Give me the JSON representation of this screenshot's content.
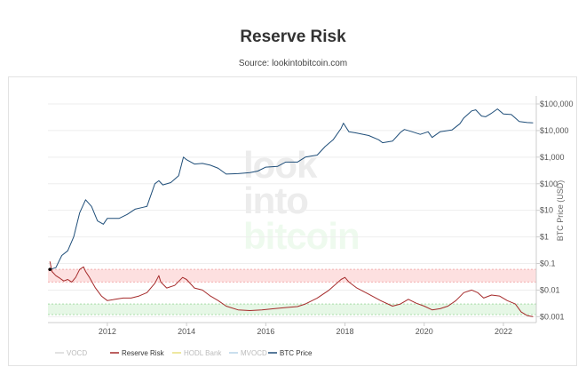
{
  "chart_data": {
    "type": "line",
    "title": "Reserve Risk",
    "subtitle": "Source: lookintobitcoin.com",
    "watermark": [
      "look",
      "into",
      "bitcoin"
    ],
    "y_right_label": "BTC Price (USD)",
    "y_right_scale": "log",
    "y_right_range": [
      0.0006,
      200000
    ],
    "y_right_ticks": [
      "$0.001",
      "$0.01",
      "$0.1",
      "$1",
      "$10",
      "$100",
      "$1,000",
      "$10,000",
      "$100,000"
    ],
    "x_range": [
      2010.5,
      2022.83
    ],
    "x_ticks": [
      "2012",
      "2014",
      "2016",
      "2018",
      "2020",
      "2022"
    ],
    "bands": [
      {
        "from": 0.02,
        "to": 0.06,
        "color": "#fde0e0"
      },
      {
        "from": 0.0012,
        "to": 0.003,
        "color": "#e6f7e6"
      }
    ],
    "series": [
      {
        "name": "VOCD",
        "color": "#d8d8d8",
        "values": []
      },
      {
        "name": "Reserve Risk",
        "color": "#a52a2a",
        "values": [
          [
            2010.55,
            0.12
          ],
          [
            2010.6,
            0.05
          ],
          [
            2010.7,
            0.035
          ],
          [
            2010.8,
            0.028
          ],
          [
            2010.9,
            0.022
          ],
          [
            2011.0,
            0.025
          ],
          [
            2011.1,
            0.02
          ],
          [
            2011.2,
            0.03
          ],
          [
            2011.3,
            0.06
          ],
          [
            2011.4,
            0.075
          ],
          [
            2011.45,
            0.05
          ],
          [
            2011.55,
            0.03
          ],
          [
            2011.7,
            0.012
          ],
          [
            2011.85,
            0.006
          ],
          [
            2012.0,
            0.004
          ],
          [
            2012.2,
            0.0045
          ],
          [
            2012.4,
            0.005
          ],
          [
            2012.6,
            0.005
          ],
          [
            2012.8,
            0.006
          ],
          [
            2013.0,
            0.008
          ],
          [
            2013.2,
            0.018
          ],
          [
            2013.3,
            0.035
          ],
          [
            2013.35,
            0.02
          ],
          [
            2013.5,
            0.012
          ],
          [
            2013.7,
            0.015
          ],
          [
            2013.9,
            0.03
          ],
          [
            2014.0,
            0.025
          ],
          [
            2014.2,
            0.012
          ],
          [
            2014.4,
            0.01
          ],
          [
            2014.6,
            0.006
          ],
          [
            2014.8,
            0.004
          ],
          [
            2015.0,
            0.0025
          ],
          [
            2015.3,
            0.0018
          ],
          [
            2015.6,
            0.0017
          ],
          [
            2015.9,
            0.0018
          ],
          [
            2016.2,
            0.002
          ],
          [
            2016.5,
            0.0022
          ],
          [
            2016.8,
            0.0024
          ],
          [
            2017.0,
            0.003
          ],
          [
            2017.3,
            0.005
          ],
          [
            2017.6,
            0.01
          ],
          [
            2017.9,
            0.025
          ],
          [
            2018.0,
            0.03
          ],
          [
            2018.1,
            0.02
          ],
          [
            2018.3,
            0.012
          ],
          [
            2018.6,
            0.007
          ],
          [
            2018.9,
            0.004
          ],
          [
            2019.2,
            0.0025
          ],
          [
            2019.4,
            0.003
          ],
          [
            2019.6,
            0.0045
          ],
          [
            2019.8,
            0.0032
          ],
          [
            2020.0,
            0.0025
          ],
          [
            2020.2,
            0.0018
          ],
          [
            2020.4,
            0.002
          ],
          [
            2020.6,
            0.0025
          ],
          [
            2020.8,
            0.004
          ],
          [
            2021.0,
            0.008
          ],
          [
            2021.2,
            0.01
          ],
          [
            2021.35,
            0.008
          ],
          [
            2021.5,
            0.005
          ],
          [
            2021.7,
            0.0065
          ],
          [
            2021.9,
            0.006
          ],
          [
            2022.1,
            0.004
          ],
          [
            2022.3,
            0.003
          ],
          [
            2022.45,
            0.0015
          ],
          [
            2022.6,
            0.0011
          ],
          [
            2022.75,
            0.001
          ]
        ]
      },
      {
        "name": "HODL Bank",
        "color": "#e8e080",
        "values": []
      },
      {
        "name": "MVOCD",
        "color": "#b8d4e8",
        "values": []
      },
      {
        "name": "BTC Price",
        "color": "#1f4e79",
        "values": [
          [
            2010.55,
            0.06
          ],
          [
            2010.7,
            0.07
          ],
          [
            2010.85,
            0.2
          ],
          [
            2011.0,
            0.3
          ],
          [
            2011.15,
            1.0
          ],
          [
            2011.3,
            8
          ],
          [
            2011.45,
            25
          ],
          [
            2011.6,
            14
          ],
          [
            2011.75,
            4
          ],
          [
            2011.9,
            3
          ],
          [
            2012.0,
            5
          ],
          [
            2012.3,
            5
          ],
          [
            2012.5,
            7
          ],
          [
            2012.7,
            11
          ],
          [
            2012.9,
            13
          ],
          [
            2013.0,
            14
          ],
          [
            2013.2,
            100
          ],
          [
            2013.3,
            130
          ],
          [
            2013.4,
            90
          ],
          [
            2013.6,
            110
          ],
          [
            2013.8,
            200
          ],
          [
            2013.92,
            1000
          ],
          [
            2014.0,
            800
          ],
          [
            2014.2,
            550
          ],
          [
            2014.4,
            580
          ],
          [
            2014.6,
            500
          ],
          [
            2014.8,
            380
          ],
          [
            2015.0,
            230
          ],
          [
            2015.3,
            240
          ],
          [
            2015.6,
            260
          ],
          [
            2015.8,
            300
          ],
          [
            2016.0,
            420
          ],
          [
            2016.3,
            450
          ],
          [
            2016.5,
            650
          ],
          [
            2016.8,
            650
          ],
          [
            2017.0,
            1000
          ],
          [
            2017.3,
            1200
          ],
          [
            2017.5,
            2500
          ],
          [
            2017.7,
            4500
          ],
          [
            2017.9,
            12000
          ],
          [
            2017.96,
            19000
          ],
          [
            2018.1,
            9000
          ],
          [
            2018.3,
            8000
          ],
          [
            2018.6,
            6500
          ],
          [
            2018.85,
            4500
          ],
          [
            2018.95,
            3500
          ],
          [
            2019.2,
            4000
          ],
          [
            2019.4,
            8500
          ],
          [
            2019.5,
            11000
          ],
          [
            2019.7,
            9000
          ],
          [
            2019.9,
            7200
          ],
          [
            2020.1,
            9000
          ],
          [
            2020.2,
            5500
          ],
          [
            2020.4,
            9000
          ],
          [
            2020.7,
            10500
          ],
          [
            2020.9,
            18000
          ],
          [
            2021.0,
            30000
          ],
          [
            2021.2,
            55000
          ],
          [
            2021.3,
            60000
          ],
          [
            2021.45,
            35000
          ],
          [
            2021.55,
            33000
          ],
          [
            2021.7,
            45000
          ],
          [
            2021.85,
            65000
          ],
          [
            2022.0,
            42000
          ],
          [
            2022.2,
            40000
          ],
          [
            2022.4,
            22000
          ],
          [
            2022.6,
            20000
          ],
          [
            2022.75,
            19500
          ]
        ]
      }
    ]
  }
}
